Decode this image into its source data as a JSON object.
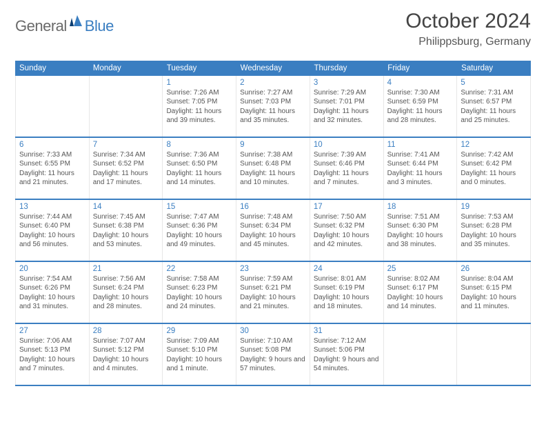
{
  "brand": {
    "part1": "General",
    "part2": "Blue"
  },
  "title": "October 2024",
  "location": "Philippsburg, Germany",
  "weekdays": [
    "Sunday",
    "Monday",
    "Tuesday",
    "Wednesday",
    "Thursday",
    "Friday",
    "Saturday"
  ],
  "colors": {
    "accent": "#3a7ec1",
    "text": "#4a4a4a",
    "bg": "#ffffff"
  },
  "weeks": [
    [
      null,
      null,
      {
        "n": "1",
        "sr": "Sunrise: 7:26 AM",
        "ss": "Sunset: 7:05 PM",
        "dl": "Daylight: 11 hours and 39 minutes."
      },
      {
        "n": "2",
        "sr": "Sunrise: 7:27 AM",
        "ss": "Sunset: 7:03 PM",
        "dl": "Daylight: 11 hours and 35 minutes."
      },
      {
        "n": "3",
        "sr": "Sunrise: 7:29 AM",
        "ss": "Sunset: 7:01 PM",
        "dl": "Daylight: 11 hours and 32 minutes."
      },
      {
        "n": "4",
        "sr": "Sunrise: 7:30 AM",
        "ss": "Sunset: 6:59 PM",
        "dl": "Daylight: 11 hours and 28 minutes."
      },
      {
        "n": "5",
        "sr": "Sunrise: 7:31 AM",
        "ss": "Sunset: 6:57 PM",
        "dl": "Daylight: 11 hours and 25 minutes."
      }
    ],
    [
      {
        "n": "6",
        "sr": "Sunrise: 7:33 AM",
        "ss": "Sunset: 6:55 PM",
        "dl": "Daylight: 11 hours and 21 minutes."
      },
      {
        "n": "7",
        "sr": "Sunrise: 7:34 AM",
        "ss": "Sunset: 6:52 PM",
        "dl": "Daylight: 11 hours and 17 minutes."
      },
      {
        "n": "8",
        "sr": "Sunrise: 7:36 AM",
        "ss": "Sunset: 6:50 PM",
        "dl": "Daylight: 11 hours and 14 minutes."
      },
      {
        "n": "9",
        "sr": "Sunrise: 7:38 AM",
        "ss": "Sunset: 6:48 PM",
        "dl": "Daylight: 11 hours and 10 minutes."
      },
      {
        "n": "10",
        "sr": "Sunrise: 7:39 AM",
        "ss": "Sunset: 6:46 PM",
        "dl": "Daylight: 11 hours and 7 minutes."
      },
      {
        "n": "11",
        "sr": "Sunrise: 7:41 AM",
        "ss": "Sunset: 6:44 PM",
        "dl": "Daylight: 11 hours and 3 minutes."
      },
      {
        "n": "12",
        "sr": "Sunrise: 7:42 AM",
        "ss": "Sunset: 6:42 PM",
        "dl": "Daylight: 11 hours and 0 minutes."
      }
    ],
    [
      {
        "n": "13",
        "sr": "Sunrise: 7:44 AM",
        "ss": "Sunset: 6:40 PM",
        "dl": "Daylight: 10 hours and 56 minutes."
      },
      {
        "n": "14",
        "sr": "Sunrise: 7:45 AM",
        "ss": "Sunset: 6:38 PM",
        "dl": "Daylight: 10 hours and 53 minutes."
      },
      {
        "n": "15",
        "sr": "Sunrise: 7:47 AM",
        "ss": "Sunset: 6:36 PM",
        "dl": "Daylight: 10 hours and 49 minutes."
      },
      {
        "n": "16",
        "sr": "Sunrise: 7:48 AM",
        "ss": "Sunset: 6:34 PM",
        "dl": "Daylight: 10 hours and 45 minutes."
      },
      {
        "n": "17",
        "sr": "Sunrise: 7:50 AM",
        "ss": "Sunset: 6:32 PM",
        "dl": "Daylight: 10 hours and 42 minutes."
      },
      {
        "n": "18",
        "sr": "Sunrise: 7:51 AM",
        "ss": "Sunset: 6:30 PM",
        "dl": "Daylight: 10 hours and 38 minutes."
      },
      {
        "n": "19",
        "sr": "Sunrise: 7:53 AM",
        "ss": "Sunset: 6:28 PM",
        "dl": "Daylight: 10 hours and 35 minutes."
      }
    ],
    [
      {
        "n": "20",
        "sr": "Sunrise: 7:54 AM",
        "ss": "Sunset: 6:26 PM",
        "dl": "Daylight: 10 hours and 31 minutes."
      },
      {
        "n": "21",
        "sr": "Sunrise: 7:56 AM",
        "ss": "Sunset: 6:24 PM",
        "dl": "Daylight: 10 hours and 28 minutes."
      },
      {
        "n": "22",
        "sr": "Sunrise: 7:58 AM",
        "ss": "Sunset: 6:23 PM",
        "dl": "Daylight: 10 hours and 24 minutes."
      },
      {
        "n": "23",
        "sr": "Sunrise: 7:59 AM",
        "ss": "Sunset: 6:21 PM",
        "dl": "Daylight: 10 hours and 21 minutes."
      },
      {
        "n": "24",
        "sr": "Sunrise: 8:01 AM",
        "ss": "Sunset: 6:19 PM",
        "dl": "Daylight: 10 hours and 18 minutes."
      },
      {
        "n": "25",
        "sr": "Sunrise: 8:02 AM",
        "ss": "Sunset: 6:17 PM",
        "dl": "Daylight: 10 hours and 14 minutes."
      },
      {
        "n": "26",
        "sr": "Sunrise: 8:04 AM",
        "ss": "Sunset: 6:15 PM",
        "dl": "Daylight: 10 hours and 11 minutes."
      }
    ],
    [
      {
        "n": "27",
        "sr": "Sunrise: 7:06 AM",
        "ss": "Sunset: 5:13 PM",
        "dl": "Daylight: 10 hours and 7 minutes."
      },
      {
        "n": "28",
        "sr": "Sunrise: 7:07 AM",
        "ss": "Sunset: 5:12 PM",
        "dl": "Daylight: 10 hours and 4 minutes."
      },
      {
        "n": "29",
        "sr": "Sunrise: 7:09 AM",
        "ss": "Sunset: 5:10 PM",
        "dl": "Daylight: 10 hours and 1 minute."
      },
      {
        "n": "30",
        "sr": "Sunrise: 7:10 AM",
        "ss": "Sunset: 5:08 PM",
        "dl": "Daylight: 9 hours and 57 minutes."
      },
      {
        "n": "31",
        "sr": "Sunrise: 7:12 AM",
        "ss": "Sunset: 5:06 PM",
        "dl": "Daylight: 9 hours and 54 minutes."
      },
      null,
      null
    ]
  ]
}
